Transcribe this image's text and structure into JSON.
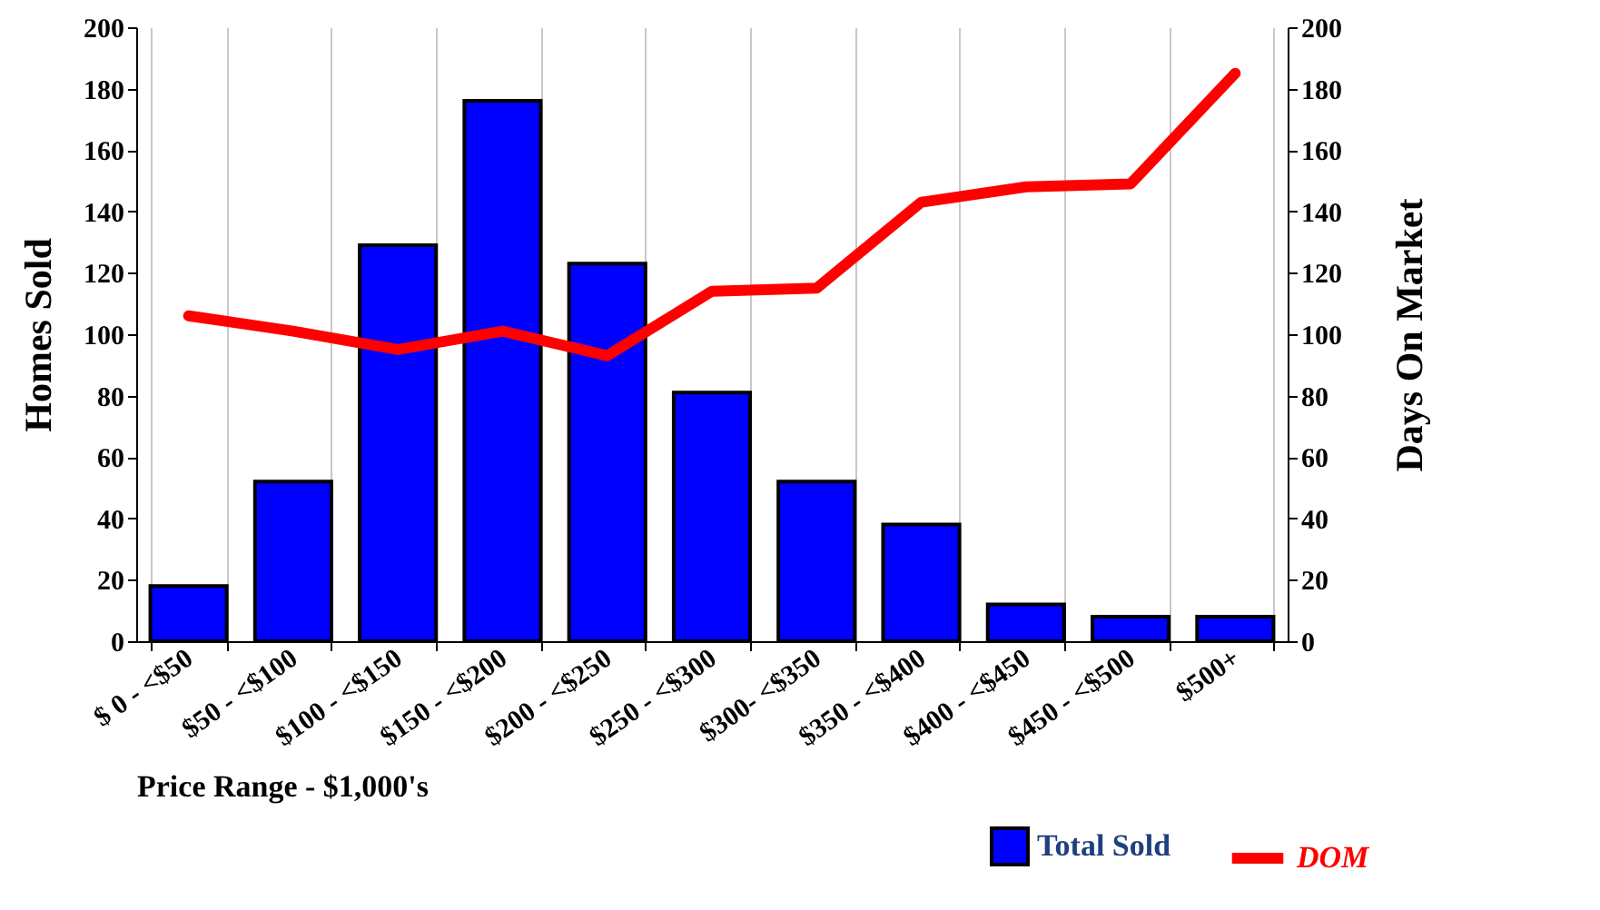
{
  "chart_data": {
    "type": "bar",
    "xlabel": "Price Range - $1,000's",
    "ylabel": "Homes Sold",
    "y2label": "Days On Market",
    "categories": [
      "$ 0 - <$50",
      "$50 - <$100",
      "$100 - <$150",
      "$150 - <$200",
      "$200 - <$250",
      "$250 - <$300",
      "$300- <$350",
      "$350 - <$400",
      "$400 - <$450",
      "$450 - <$500",
      "$500+"
    ],
    "series": [
      {
        "name": "Total Sold",
        "color": "#0000ff",
        "values": [
          18,
          52,
          129,
          176,
          123,
          81,
          52,
          38,
          12,
          8,
          8
        ]
      },
      {
        "name": "DOM",
        "type": "line",
        "axis": "y2",
        "color": "#ff0000",
        "values": [
          106,
          101,
          95,
          101,
          93,
          114,
          115,
          143,
          148,
          149,
          185
        ]
      }
    ],
    "ylim": [
      0,
      200
    ],
    "yticks": [
      0,
      20,
      40,
      60,
      80,
      100,
      120,
      140,
      160,
      180,
      200
    ],
    "y2lim": [
      0,
      200
    ],
    "y2ticks": [
      0,
      20,
      40,
      60,
      80,
      100,
      120,
      140,
      160,
      180,
      200
    ],
    "grid": "x",
    "legend": "bottom right",
    "marker": "none",
    "line_style": "solid"
  }
}
